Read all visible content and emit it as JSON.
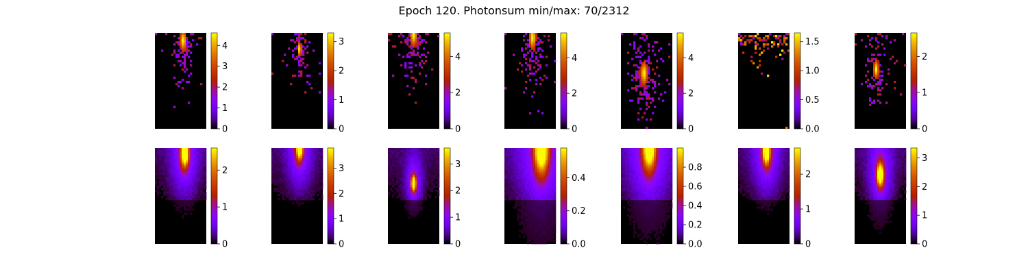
{
  "figure": {
    "title": "Epoch 120. Photonsum min/max: 70/2312"
  },
  "chart_data": [
    {
      "type": "heatmap",
      "row": "top",
      "index": 1,
      "colormap": "gnuplot",
      "colorbar": {
        "min": 0,
        "max": 4.6,
        "ticks": [
          "0",
          "1",
          "2",
          "3",
          "4"
        ]
      },
      "hotspot": {
        "x": 0.55,
        "y": 0.08
      },
      "spread": 0.18,
      "layout": "sparse"
    },
    {
      "type": "heatmap",
      "row": "top",
      "index": 2,
      "colormap": "gnuplot",
      "colorbar": {
        "min": 0,
        "max": 3.3,
        "ticks": [
          "0",
          "1",
          "2",
          "3"
        ]
      },
      "hotspot": {
        "x": 0.55,
        "y": 0.17
      },
      "spread": 0.12,
      "layout": "sparse"
    },
    {
      "type": "heatmap",
      "row": "top",
      "index": 3,
      "colormap": "gnuplot",
      "colorbar": {
        "min": 0,
        "max": 5.3,
        "ticks": [
          "0",
          "2",
          "4"
        ]
      },
      "hotspot": {
        "x": 0.5,
        "y": 0.02
      },
      "spread": 0.2,
      "layout": "sparse"
    },
    {
      "type": "heatmap",
      "row": "top",
      "index": 4,
      "colormap": "gnuplot",
      "colorbar": {
        "min": 0,
        "max": 5.4,
        "ticks": [
          "0",
          "2",
          "4"
        ]
      },
      "hotspot": {
        "x": 0.55,
        "y": 0.05
      },
      "spread": 0.2,
      "layout": "sparse"
    },
    {
      "type": "heatmap",
      "row": "top",
      "index": 5,
      "colormap": "gnuplot",
      "colorbar": {
        "min": 0,
        "max": 5.4,
        "ticks": [
          "0",
          "2",
          "4"
        ]
      },
      "hotspot": {
        "x": 0.45,
        "y": 0.42
      },
      "spread": 0.2,
      "layout": "sparse"
    },
    {
      "type": "heatmap",
      "row": "top",
      "index": 6,
      "colormap": "gnuplot",
      "colorbar": {
        "min": 0,
        "max": 1.65,
        "ticks": [
          "0.0",
          "0.5",
          "1.0",
          "1.5"
        ]
      },
      "hotspot": {
        "x": 0.5,
        "y": 0.01
      },
      "spread": 0.1,
      "layout": "topband"
    },
    {
      "type": "heatmap",
      "row": "top",
      "index": 7,
      "colormap": "gnuplot",
      "colorbar": {
        "min": 0,
        "max": 2.65,
        "ticks": [
          "0",
          "1",
          "2"
        ]
      },
      "hotspot": {
        "x": 0.42,
        "y": 0.38
      },
      "spread": 0.15,
      "layout": "sparse"
    },
    {
      "type": "heatmap",
      "row": "bottom",
      "index": 1,
      "colormap": "gnuplot",
      "colorbar": {
        "min": 0,
        "max": 2.6,
        "ticks": [
          "0",
          "1",
          "2"
        ]
      },
      "hotspot": {
        "x": 0.58,
        "y": 0.06
      },
      "spread": 0.2,
      "layout": "smooth"
    },
    {
      "type": "heatmap",
      "row": "bottom",
      "index": 2,
      "colormap": "gnuplot",
      "colorbar": {
        "min": 0,
        "max": 3.8,
        "ticks": [
          "0",
          "1",
          "2",
          "3"
        ]
      },
      "hotspot": {
        "x": 0.55,
        "y": 0.0
      },
      "spread": 0.18,
      "layout": "smooth"
    },
    {
      "type": "heatmap",
      "row": "bottom",
      "index": 3,
      "colormap": "gnuplot",
      "colorbar": {
        "min": 0,
        "max": 3.6,
        "ticks": [
          "0",
          "1",
          "2",
          "3"
        ]
      },
      "hotspot": {
        "x": 0.5,
        "y": 0.37
      },
      "spread": 0.12,
      "layout": "smooth"
    },
    {
      "type": "heatmap",
      "row": "bottom",
      "index": 4,
      "colormap": "gnuplot",
      "colorbar": {
        "min": 0,
        "max": 0.58,
        "ticks": [
          "0.0",
          "0.2",
          "0.4"
        ]
      },
      "hotspot": {
        "x": 0.72,
        "y": 0.02
      },
      "spread": 0.35,
      "layout": "smooth"
    },
    {
      "type": "heatmap",
      "row": "bottom",
      "index": 5,
      "colormap": "gnuplot",
      "colorbar": {
        "min": 0,
        "max": 1.0,
        "ticks": [
          "0.0",
          "0.2",
          "0.4",
          "0.6",
          "0.8"
        ]
      },
      "hotspot": {
        "x": 0.55,
        "y": 0.0
      },
      "spread": 0.32,
      "layout": "smooth"
    },
    {
      "type": "heatmap",
      "row": "bottom",
      "index": 6,
      "colormap": "gnuplot",
      "colorbar": {
        "min": 0,
        "max": 2.75,
        "ticks": [
          "0",
          "1",
          "2"
        ]
      },
      "hotspot": {
        "x": 0.55,
        "y": 0.04
      },
      "spread": 0.2,
      "layout": "smooth"
    },
    {
      "type": "heatmap",
      "row": "bottom",
      "index": 7,
      "colormap": "gnuplot",
      "colorbar": {
        "min": 0,
        "max": 3.35,
        "ticks": [
          "0",
          "1",
          "2",
          "3"
        ]
      },
      "hotspot": {
        "x": 0.5,
        "y": 0.28
      },
      "spread": 0.18,
      "layout": "smooth"
    }
  ]
}
